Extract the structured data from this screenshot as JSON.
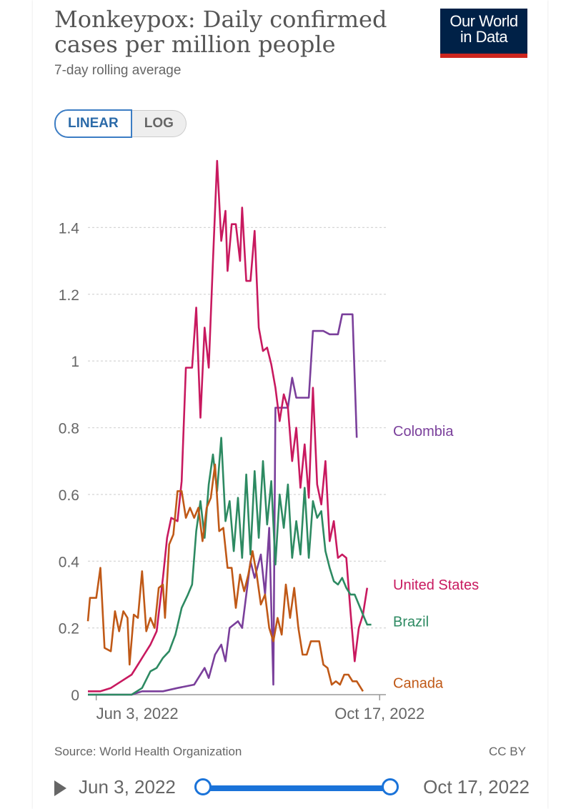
{
  "header": {
    "title": "Monkeypox: Daily confirmed cases per million people",
    "subtitle": "7-day rolling average",
    "logo_line1": "Our World",
    "logo_line2": "in Data"
  },
  "scale_toggle": {
    "linear": "LINEAR",
    "log": "LOG",
    "selected": "LINEAR"
  },
  "footer": {
    "source": "Source: World Health Organization",
    "license": "CC BY"
  },
  "timeline": {
    "start": "Jun 3, 2022",
    "end": "Oct 17, 2022"
  },
  "colors": {
    "Colombia": "#7a3f9b",
    "United States": "#c8195f",
    "Brazil": "#2d8a62",
    "Canada": "#c05917"
  },
  "chart_data": {
    "type": "line",
    "title": "Monkeypox: Daily confirmed cases per million people",
    "subtitle": "7-day rolling average",
    "x_start": "2022-05-30",
    "x_end": "2022-10-20",
    "x_ticks": [
      "Jun 3, 2022",
      "Oct 17, 2022"
    ],
    "x_tick_dates": [
      "2022-06-03",
      "2022-10-17"
    ],
    "ylim": [
      0,
      1.6
    ],
    "y_ticks": [
      0,
      0.2,
      0.4,
      0.6,
      0.8,
      1,
      1.2,
      1.4
    ],
    "y_tick_labels": [
      "0",
      "0.2",
      "0.4",
      "0.6",
      "0.8",
      "1",
      "1.2",
      "1.4"
    ],
    "grid": true,
    "series": [
      {
        "name": "Colombia",
        "points": [
          [
            "2022-05-30",
            0
          ],
          [
            "2022-06-20",
            0
          ],
          [
            "2022-06-25",
            0.01
          ],
          [
            "2022-07-05",
            0.01
          ],
          [
            "2022-07-12",
            0.02
          ],
          [
            "2022-07-20",
            0.03
          ],
          [
            "2022-07-25",
            0.08
          ],
          [
            "2022-07-27",
            0.05
          ],
          [
            "2022-07-30",
            0.12
          ],
          [
            "2022-08-02",
            0.15
          ],
          [
            "2022-08-04",
            0.1
          ],
          [
            "2022-08-06",
            0.2
          ],
          [
            "2022-08-10",
            0.22
          ],
          [
            "2022-08-12",
            0.2
          ],
          [
            "2022-08-16",
            0.4
          ],
          [
            "2022-08-18",
            0.35
          ],
          [
            "2022-08-21",
            0.42
          ],
          [
            "2022-08-23",
            0.3
          ],
          [
            "2022-08-25",
            0.5
          ],
          [
            "2022-08-27",
            0.03
          ],
          [
            "2022-08-28",
            0.86
          ],
          [
            "2022-09-03",
            0.86
          ],
          [
            "2022-09-05",
            0.95
          ],
          [
            "2022-09-07",
            0.89
          ],
          [
            "2022-09-10",
            0.89
          ],
          [
            "2022-09-13",
            0.89
          ],
          [
            "2022-09-15",
            1.09
          ],
          [
            "2022-09-20",
            1.09
          ],
          [
            "2022-09-23",
            1.08
          ],
          [
            "2022-09-27",
            1.08
          ],
          [
            "2022-09-29",
            1.14
          ],
          [
            "2022-10-04",
            1.14
          ],
          [
            "2022-10-06",
            0.77
          ]
        ]
      },
      {
        "name": "United States",
        "points": [
          [
            "2022-05-30",
            0.01
          ],
          [
            "2022-06-05",
            0.01
          ],
          [
            "2022-06-10",
            0.02
          ],
          [
            "2022-06-15",
            0.04
          ],
          [
            "2022-06-20",
            0.06
          ],
          [
            "2022-06-23",
            0.09
          ],
          [
            "2022-06-26",
            0.12
          ],
          [
            "2022-06-29",
            0.15
          ],
          [
            "2022-07-02",
            0.19
          ],
          [
            "2022-07-05",
            0.35
          ],
          [
            "2022-07-07",
            0.47
          ],
          [
            "2022-07-09",
            0.53
          ],
          [
            "2022-07-12",
            0.52
          ],
          [
            "2022-07-14",
            0.64
          ],
          [
            "2022-07-16",
            0.98
          ],
          [
            "2022-07-19",
            0.98
          ],
          [
            "2022-07-21",
            1.16
          ],
          [
            "2022-07-23",
            0.83
          ],
          [
            "2022-07-25",
            1.1
          ],
          [
            "2022-07-27",
            0.98
          ],
          [
            "2022-07-29",
            1.3
          ],
          [
            "2022-07-31",
            1.6
          ],
          [
            "2022-08-02",
            1.36
          ],
          [
            "2022-08-04",
            1.45
          ],
          [
            "2022-08-05",
            1.27
          ],
          [
            "2022-08-07",
            1.41
          ],
          [
            "2022-08-09",
            1.41
          ],
          [
            "2022-08-11",
            1.3
          ],
          [
            "2022-08-12",
            1.46
          ],
          [
            "2022-08-14",
            1.24
          ],
          [
            "2022-08-16",
            1.24
          ],
          [
            "2022-08-18",
            1.39
          ],
          [
            "2022-08-20",
            1.1
          ],
          [
            "2022-08-22",
            1.03
          ],
          [
            "2022-08-24",
            1.04
          ],
          [
            "2022-08-26",
            0.99
          ],
          [
            "2022-08-28",
            0.92
          ],
          [
            "2022-08-30",
            0.82
          ],
          [
            "2022-09-01",
            0.9
          ],
          [
            "2022-09-03",
            0.86
          ],
          [
            "2022-09-05",
            0.7
          ],
          [
            "2022-09-07",
            0.8
          ],
          [
            "2022-09-09",
            0.62
          ],
          [
            "2022-09-11",
            0.75
          ],
          [
            "2022-09-13",
            0.59
          ],
          [
            "2022-09-15",
            0.92
          ],
          [
            "2022-09-17",
            0.63
          ],
          [
            "2022-09-19",
            0.57
          ],
          [
            "2022-09-21",
            0.7
          ],
          [
            "2022-09-23",
            0.46
          ],
          [
            "2022-09-25",
            0.52
          ],
          [
            "2022-09-27",
            0.41
          ],
          [
            "2022-09-29",
            0.42
          ],
          [
            "2022-10-01",
            0.41
          ],
          [
            "2022-10-03",
            0.25
          ],
          [
            "2022-10-05",
            0.1
          ],
          [
            "2022-10-07",
            0.2
          ],
          [
            "2022-10-09",
            0.24
          ],
          [
            "2022-10-11",
            0.32
          ]
        ]
      },
      {
        "name": "Brazil",
        "points": [
          [
            "2022-05-30",
            0
          ],
          [
            "2022-06-20",
            0
          ],
          [
            "2022-06-25",
            0.02
          ],
          [
            "2022-06-29",
            0.07
          ],
          [
            "2022-07-02",
            0.08
          ],
          [
            "2022-07-05",
            0.11
          ],
          [
            "2022-07-08",
            0.13
          ],
          [
            "2022-07-11",
            0.18
          ],
          [
            "2022-07-14",
            0.26
          ],
          [
            "2022-07-17",
            0.3
          ],
          [
            "2022-07-19",
            0.33
          ],
          [
            "2022-07-21",
            0.49
          ],
          [
            "2022-07-23",
            0.58
          ],
          [
            "2022-07-25",
            0.47
          ],
          [
            "2022-07-27",
            0.63
          ],
          [
            "2022-07-29",
            0.72
          ],
          [
            "2022-07-31",
            0.61
          ],
          [
            "2022-08-02",
            0.77
          ],
          [
            "2022-08-04",
            0.52
          ],
          [
            "2022-08-06",
            0.58
          ],
          [
            "2022-08-08",
            0.43
          ],
          [
            "2022-08-10",
            0.59
          ],
          [
            "2022-08-12",
            0.41
          ],
          [
            "2022-08-14",
            0.66
          ],
          [
            "2022-08-16",
            0.42
          ],
          [
            "2022-08-18",
            0.67
          ],
          [
            "2022-08-20",
            0.47
          ],
          [
            "2022-08-22",
            0.7
          ],
          [
            "2022-08-24",
            0.51
          ],
          [
            "2022-08-26",
            0.64
          ],
          [
            "2022-08-28",
            0.39
          ],
          [
            "2022-08-30",
            0.6
          ],
          [
            "2022-09-01",
            0.5
          ],
          [
            "2022-09-03",
            0.63
          ],
          [
            "2022-09-05",
            0.41
          ],
          [
            "2022-09-07",
            0.52
          ],
          [
            "2022-09-09",
            0.42
          ],
          [
            "2022-09-11",
            0.62
          ],
          [
            "2022-09-13",
            0.41
          ],
          [
            "2022-09-15",
            0.58
          ],
          [
            "2022-09-17",
            0.53
          ],
          [
            "2022-09-19",
            0.55
          ],
          [
            "2022-09-21",
            0.43
          ],
          [
            "2022-09-23",
            0.38
          ],
          [
            "2022-09-25",
            0.34
          ],
          [
            "2022-09-27",
            0.33
          ],
          [
            "2022-09-29",
            0.35
          ],
          [
            "2022-10-01",
            0.32
          ],
          [
            "2022-10-03",
            0.3
          ],
          [
            "2022-10-05",
            0.3
          ],
          [
            "2022-10-07",
            0.27
          ],
          [
            "2022-10-09",
            0.24
          ],
          [
            "2022-10-11",
            0.21
          ],
          [
            "2022-10-13",
            0.21
          ]
        ]
      },
      {
        "name": "Canada",
        "points": [
          [
            "2022-05-30",
            0.22
          ],
          [
            "2022-05-31",
            0.29
          ],
          [
            "2022-06-03",
            0.29
          ],
          [
            "2022-06-05",
            0.38
          ],
          [
            "2022-06-07",
            0.14
          ],
          [
            "2022-06-10",
            0.13
          ],
          [
            "2022-06-12",
            0.25
          ],
          [
            "2022-06-14",
            0.19
          ],
          [
            "2022-06-16",
            0.25
          ],
          [
            "2022-06-18",
            0.23
          ],
          [
            "2022-06-19",
            0.09
          ],
          [
            "2022-06-21",
            0.24
          ],
          [
            "2022-06-23",
            0.23
          ],
          [
            "2022-06-25",
            0.37
          ],
          [
            "2022-06-27",
            0.19
          ],
          [
            "2022-06-29",
            0.23
          ],
          [
            "2022-07-01",
            0.2
          ],
          [
            "2022-07-03",
            0.32
          ],
          [
            "2022-07-05",
            0.33
          ],
          [
            "2022-07-06",
            0.23
          ],
          [
            "2022-07-08",
            0.45
          ],
          [
            "2022-07-10",
            0.48
          ],
          [
            "2022-07-12",
            0.61
          ],
          [
            "2022-07-14",
            0.61
          ],
          [
            "2022-07-16",
            0.53
          ],
          [
            "2022-07-18",
            0.56
          ],
          [
            "2022-07-20",
            0.53
          ],
          [
            "2022-07-22",
            0.56
          ],
          [
            "2022-07-24",
            0.46
          ],
          [
            "2022-07-26",
            0.56
          ],
          [
            "2022-07-28",
            0.59
          ],
          [
            "2022-07-30",
            0.69
          ],
          [
            "2022-08-01",
            0.49
          ],
          [
            "2022-08-03",
            0.5
          ],
          [
            "2022-08-05",
            0.38
          ],
          [
            "2022-08-07",
            0.38
          ],
          [
            "2022-08-09",
            0.26
          ],
          [
            "2022-08-11",
            0.36
          ],
          [
            "2022-08-13",
            0.31
          ],
          [
            "2022-08-15",
            0.36
          ],
          [
            "2022-08-17",
            0.43
          ],
          [
            "2022-08-19",
            0.36
          ],
          [
            "2022-08-21",
            0.27
          ],
          [
            "2022-08-23",
            0.3
          ],
          [
            "2022-08-25",
            0.2
          ],
          [
            "2022-08-27",
            0.16
          ],
          [
            "2022-08-29",
            0.23
          ],
          [
            "2022-08-31",
            0.18
          ],
          [
            "2022-09-02",
            0.33
          ],
          [
            "2022-09-04",
            0.23
          ],
          [
            "2022-09-06",
            0.32
          ],
          [
            "2022-09-08",
            0.2
          ],
          [
            "2022-09-10",
            0.12
          ],
          [
            "2022-09-12",
            0.12
          ],
          [
            "2022-09-14",
            0.16
          ],
          [
            "2022-09-18",
            0.16
          ],
          [
            "2022-09-20",
            0.09
          ],
          [
            "2022-09-22",
            0.08
          ],
          [
            "2022-09-24",
            0.03
          ],
          [
            "2022-09-26",
            0.04
          ],
          [
            "2022-09-28",
            0.03
          ],
          [
            "2022-09-30",
            0.06
          ],
          [
            "2022-10-02",
            0.06
          ],
          [
            "2022-10-04",
            0.04
          ],
          [
            "2022-10-06",
            0.04
          ],
          [
            "2022-10-08",
            0.02
          ],
          [
            "2022-10-09",
            0.01
          ]
        ]
      }
    ],
    "end_labels": [
      {
        "name": "Colombia",
        "value": 0.79
      },
      {
        "name": "United States",
        "value": 0.33
      },
      {
        "name": "Brazil",
        "value": 0.22
      },
      {
        "name": "Canada",
        "value": 0.035
      }
    ]
  }
}
